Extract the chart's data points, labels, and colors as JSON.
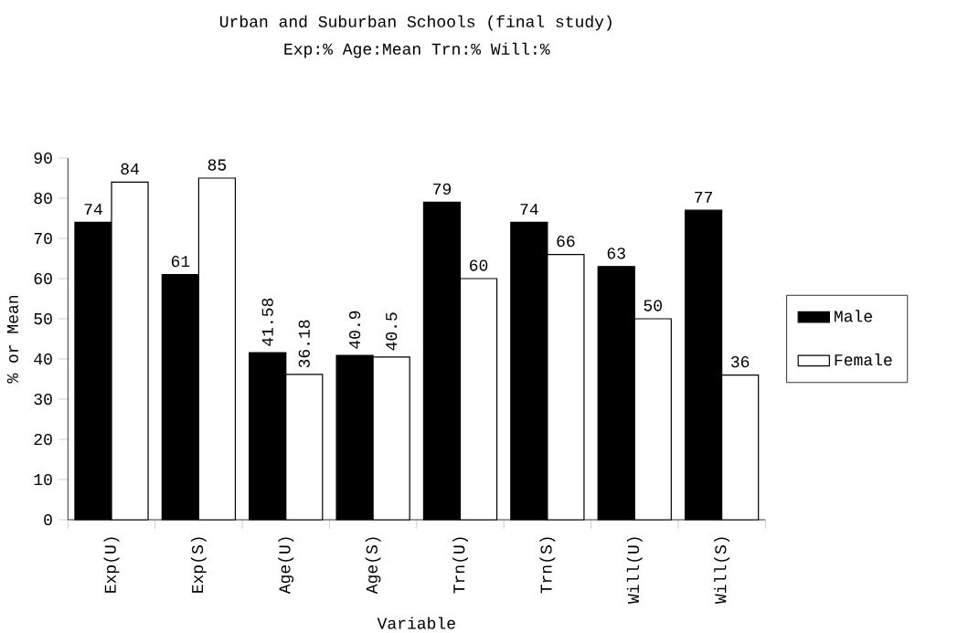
{
  "chart_data": {
    "type": "bar",
    "title": "Urban and Suburban Schools (final study)",
    "subtitle": "Exp:%    Age:Mean    Trn:%    Will:%",
    "xlabel": "Variable",
    "ylabel": "% or Mean",
    "categories": [
      "Exp(U)",
      "Exp(S)",
      "Age(U)",
      "Age(S)",
      "Trn(U)",
      "Trn(S)",
      "Will(U)",
      "Will(S)"
    ],
    "series": [
      {
        "name": "Male",
        "color": "#000000",
        "values": [
          74,
          61,
          41.58,
          40.9,
          79,
          74,
          63,
          77
        ]
      },
      {
        "name": "Female",
        "color": "#ffffff",
        "values": [
          84,
          85,
          36.18,
          40.5,
          60,
          66,
          50,
          36
        ]
      }
    ],
    "ylim": [
      0,
      90
    ],
    "yticks": [
      0,
      10,
      20,
      30,
      40,
      50,
      60,
      70,
      80,
      90
    ],
    "data_labels": true,
    "legend": "right",
    "grid": false
  }
}
